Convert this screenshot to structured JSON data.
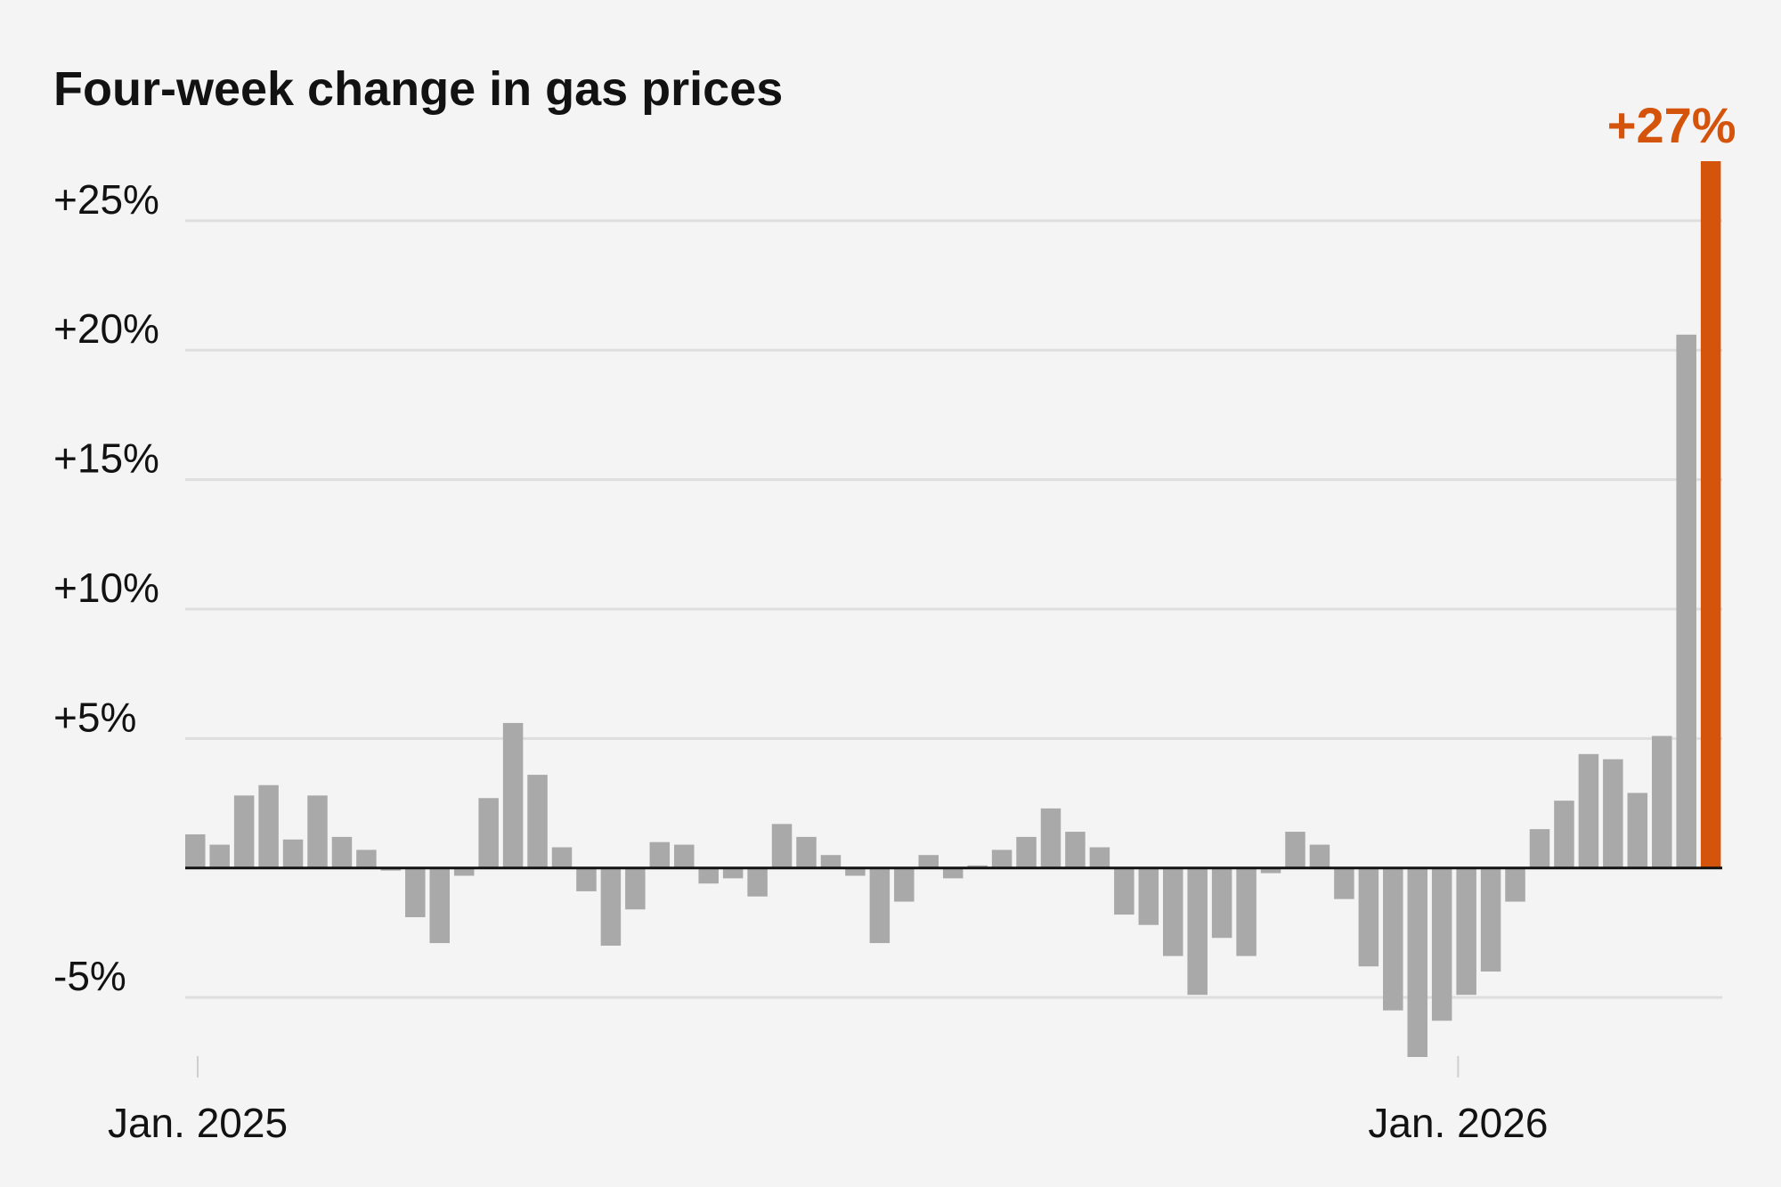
{
  "chart_data": {
    "type": "bar",
    "title": "Four-week change in gas prices",
    "ylim": [
      -7.3,
      27.3
    ],
    "y_ticks": [
      {
        "value": 25,
        "label": "+25%"
      },
      {
        "value": 20,
        "label": "+20%"
      },
      {
        "value": 15,
        "label": "+15%"
      },
      {
        "value": 10,
        "label": "+10%"
      },
      {
        "value": 5,
        "label": "+5%"
      },
      {
        "value": -5,
        "label": "-5%"
      }
    ],
    "x_ticks": [
      {
        "index": 0,
        "label": "Jan. 2025"
      },
      {
        "index": 52,
        "label": "Jan. 2026"
      }
    ],
    "grid": true,
    "bar_color": "#a9a9a9",
    "highlight_color": "#d4540b",
    "highlight_index": 62,
    "annotation": {
      "text": "+27%",
      "bar_index": 62
    },
    "values": [
      1.3,
      0.9,
      2.8,
      3.2,
      1.1,
      2.8,
      1.2,
      0.7,
      -0.1,
      -1.9,
      -2.9,
      -0.3,
      2.7,
      5.6,
      3.6,
      0.8,
      -0.9,
      -3.0,
      -1.6,
      1.0,
      0.9,
      -0.6,
      -0.4,
      -1.1,
      1.7,
      1.2,
      0.5,
      -0.3,
      -2.9,
      -1.3,
      0.5,
      -0.4,
      0.1,
      0.7,
      1.2,
      2.3,
      1.4,
      0.8,
      -1.8,
      -2.2,
      -3.4,
      -4.9,
      -2.7,
      -3.4,
      -0.2,
      1.4,
      0.9,
      -1.2,
      -3.8,
      -5.5,
      -7.3,
      -5.9,
      -4.9,
      -4.0,
      -1.3,
      1.5,
      2.6,
      4.4,
      4.2,
      2.9,
      5.1,
      20.6,
      27.3
    ]
  }
}
